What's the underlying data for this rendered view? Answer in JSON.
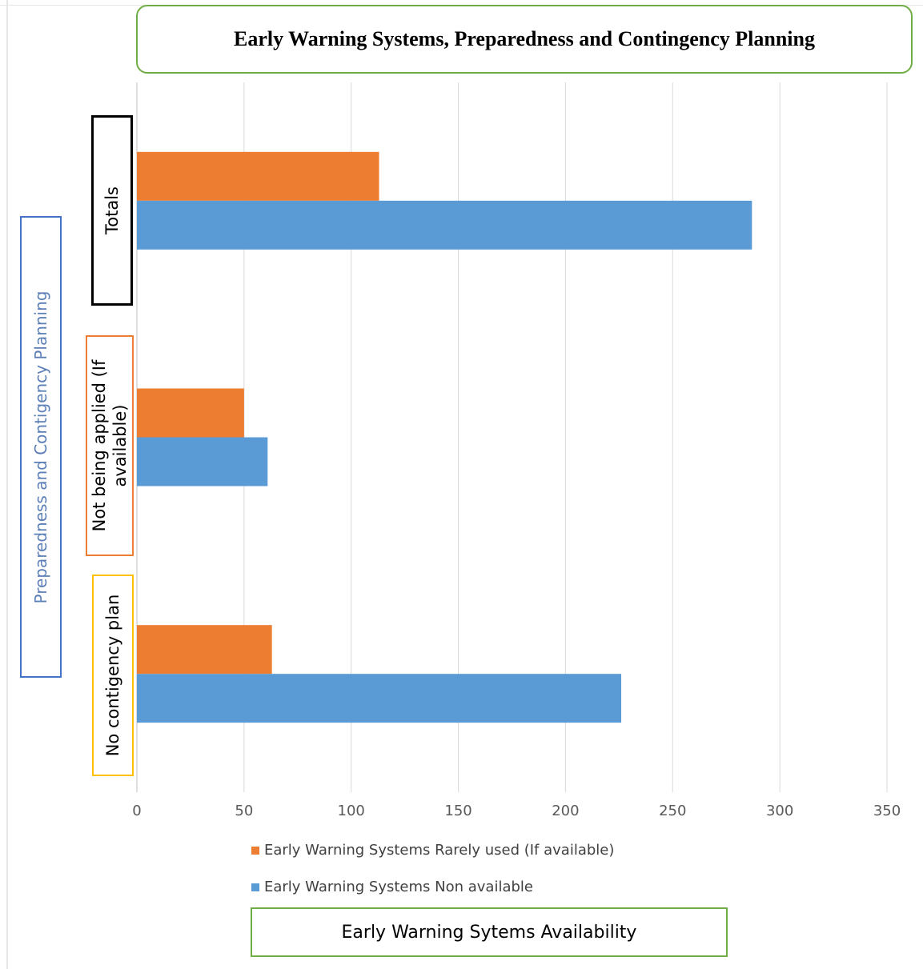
{
  "chart_data": {
    "type": "bar",
    "orientation": "horizontal",
    "title": "Early Warning Systems, Preparedness and Contingency Planning",
    "xlabel": "Early Warning Sytems Availability",
    "ylabel": "Preparedness and Contigency Planning",
    "categories": [
      "No contigency plan",
      "Not being applied  (If available)",
      "Totals"
    ],
    "series": [
      {
        "name": "Early Warning Systems  Rarely  used (If available)",
        "values": [
          63,
          50,
          113
        ],
        "color": "#ed7d31"
      },
      {
        "name": "Early Warning Systems  Non available",
        "values": [
          226,
          61,
          287
        ],
        "color": "#5b9bd5"
      }
    ],
    "xlim": [
      0,
      350
    ],
    "xticks": [
      "0",
      "50",
      "100",
      "150",
      "200",
      "250",
      "300",
      "350"
    ],
    "grid": true,
    "legend_position": "bottom"
  }
}
